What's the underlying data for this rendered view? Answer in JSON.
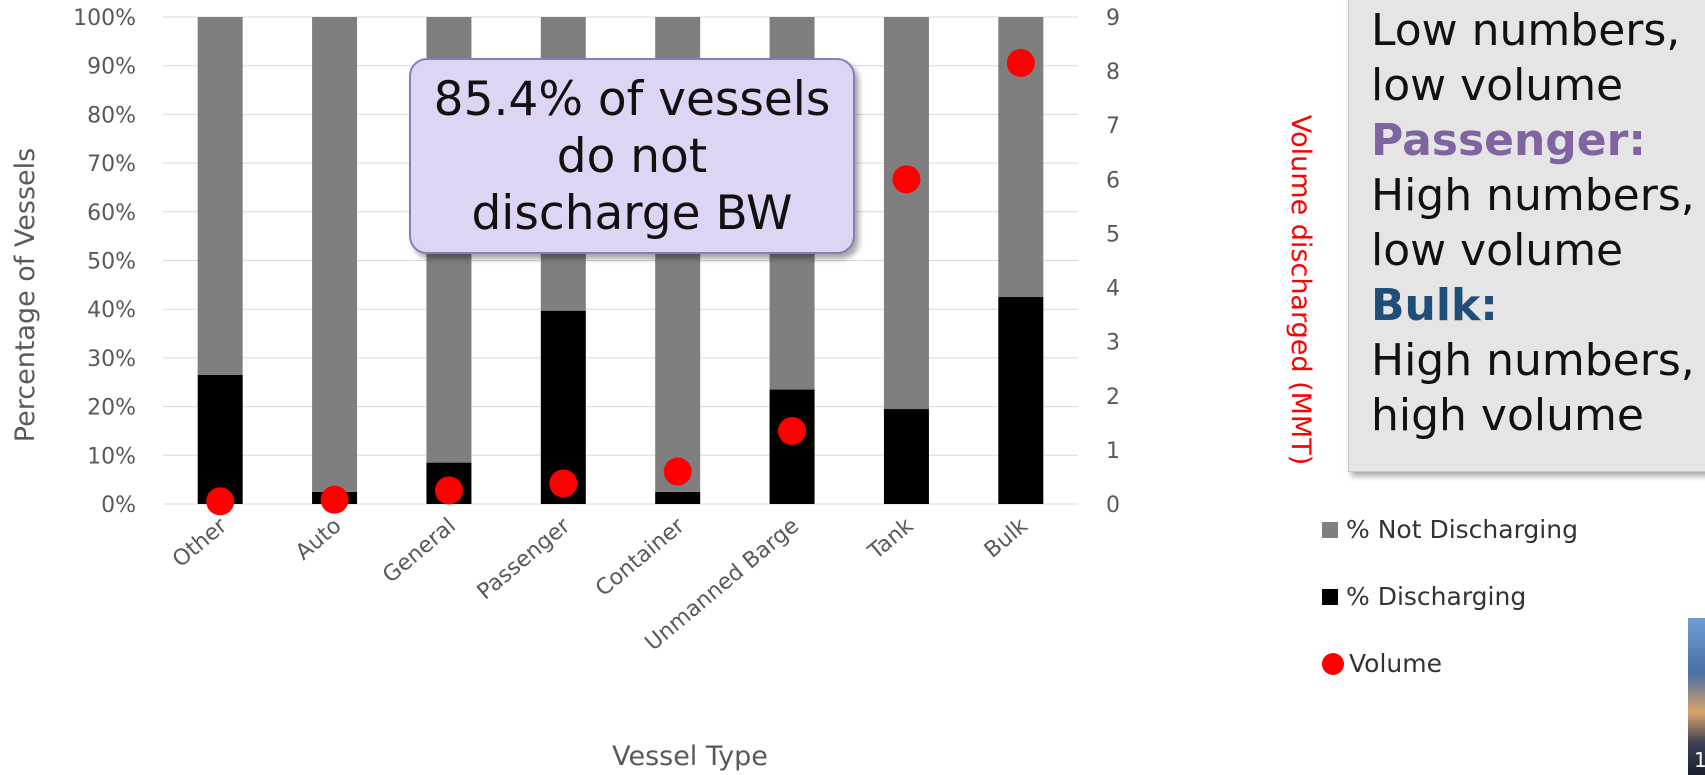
{
  "chart_data": {
    "type": "bar",
    "stacked": true,
    "categories": [
      "Other",
      "Auto",
      "General",
      "Passenger",
      "Container",
      "Unmanned Barge",
      "Tank",
      "Bulk"
    ],
    "series": [
      {
        "name": "% Discharging",
        "axis": "left",
        "color": "#000000",
        "values": [
          26.5,
          2.5,
          8.5,
          39.7,
          2.5,
          23.5,
          19.5,
          42.5
        ]
      },
      {
        "name": "% Not Discharging",
        "axis": "left",
        "color": "#7f7f7f",
        "values": [
          73.5,
          97.5,
          91.5,
          60.3,
          97.5,
          76.5,
          80.5,
          57.5
        ]
      },
      {
        "name": "Volume",
        "axis": "right",
        "type": "scatter",
        "color": "#ff0000",
        "values": [
          0.05,
          0.08,
          0.25,
          0.38,
          0.6,
          1.35,
          6.0,
          8.15
        ]
      }
    ],
    "xlabel": "Vessel Type",
    "ylabel": "Percentage of Vessels",
    "y2label": "Volume discharged (MMT)",
    "ylim": [
      0,
      100
    ],
    "y2lim": [
      0,
      9
    ],
    "yticks": [
      "0%",
      "10%",
      "20%",
      "30%",
      "40%",
      "50%",
      "60%",
      "70%",
      "80%",
      "90%",
      "100%"
    ],
    "y2ticks": [
      "0",
      "1",
      "2",
      "3",
      "4",
      "5",
      "6",
      "7",
      "8",
      "9"
    ],
    "grid": true
  },
  "callout": {
    "lines": [
      "85.4% of vessels",
      "do not",
      "discharge BW"
    ]
  },
  "sidebox": {
    "lines": [
      {
        "text": "Low numbers,",
        "style": "plain",
        "color": "#111111"
      },
      {
        "text": "low volume",
        "style": "plain",
        "color": "#111111"
      },
      {
        "text": "Passenger:",
        "style": "head",
        "color": "#8064a2"
      },
      {
        "text": "High numbers,",
        "style": "plain",
        "color": "#111111"
      },
      {
        "text": "low volume",
        "style": "plain",
        "color": "#111111"
      },
      {
        "text": "Bulk:",
        "style": "head",
        "color": "#1f4e79"
      },
      {
        "text": "High numbers,",
        "style": "plain",
        "color": "#111111"
      },
      {
        "text": "high volume",
        "style": "plain",
        "color": "#111111"
      }
    ]
  },
  "legend": [
    {
      "label": "% Not Discharging",
      "marker": "square",
      "color": "#7f7f7f"
    },
    {
      "label": "% Discharging",
      "marker": "square",
      "color": "#000000"
    },
    {
      "label": "Volume",
      "marker": "circle",
      "color": "#ff0000"
    }
  ],
  "slide_number": "1"
}
